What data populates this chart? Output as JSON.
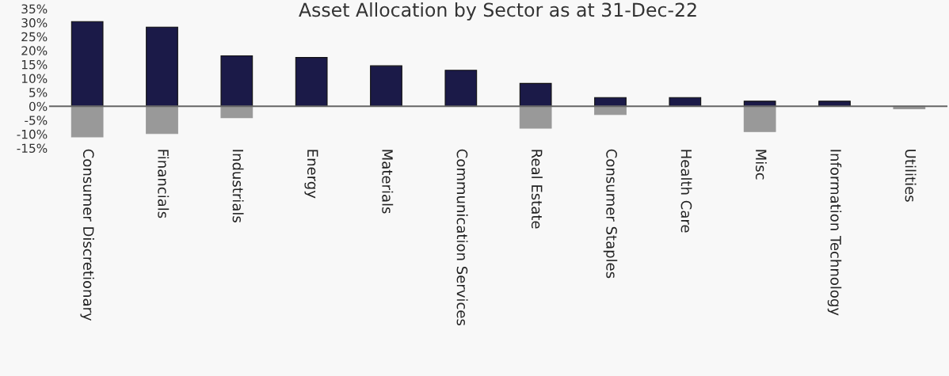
{
  "chart_data": {
    "type": "bar",
    "title": "Asset Allocation by Sector as at 31-Dec-22",
    "categories": [
      "Consumer Discretionary",
      "Financials",
      "Industrials",
      "Energy",
      "Materials",
      "Communication Services",
      "Real Estate",
      "Consumer Staples",
      "Health Care",
      "Misc",
      "Information Technology",
      "Utilities"
    ],
    "series": [
      {
        "color": "#1b1a48",
        "values": [
          30.4,
          28.4,
          18.1,
          17.5,
          14.5,
          12.9,
          8.2,
          3.1,
          3.1,
          1.8,
          1.8,
          null
        ]
      },
      {
        "color": "#999999",
        "values": [
          -11,
          -9.8,
          -4.1,
          null,
          null,
          null,
          -7.9,
          -3.0,
          null,
          -9.1,
          null,
          -0.9
        ]
      }
    ],
    "ylim": [
      -15,
      35
    ],
    "yticks": [
      {
        "value": -15,
        "label": "-15%"
      },
      {
        "value": -10,
        "label": "-10%"
      },
      {
        "value": -5,
        "label": "-5%"
      },
      {
        "value": 0,
        "label": "0%"
      },
      {
        "value": 5,
        "label": "5%"
      },
      {
        "value": 10,
        "label": "10%"
      },
      {
        "value": 15,
        "label": "15%"
      },
      {
        "value": 20,
        "label": "20%"
      },
      {
        "value": 25,
        "label": "25%"
      },
      {
        "value": 30,
        "label": "30%"
      },
      {
        "value": 35,
        "label": "35%"
      }
    ],
    "stacked": true,
    "legend": false
  }
}
